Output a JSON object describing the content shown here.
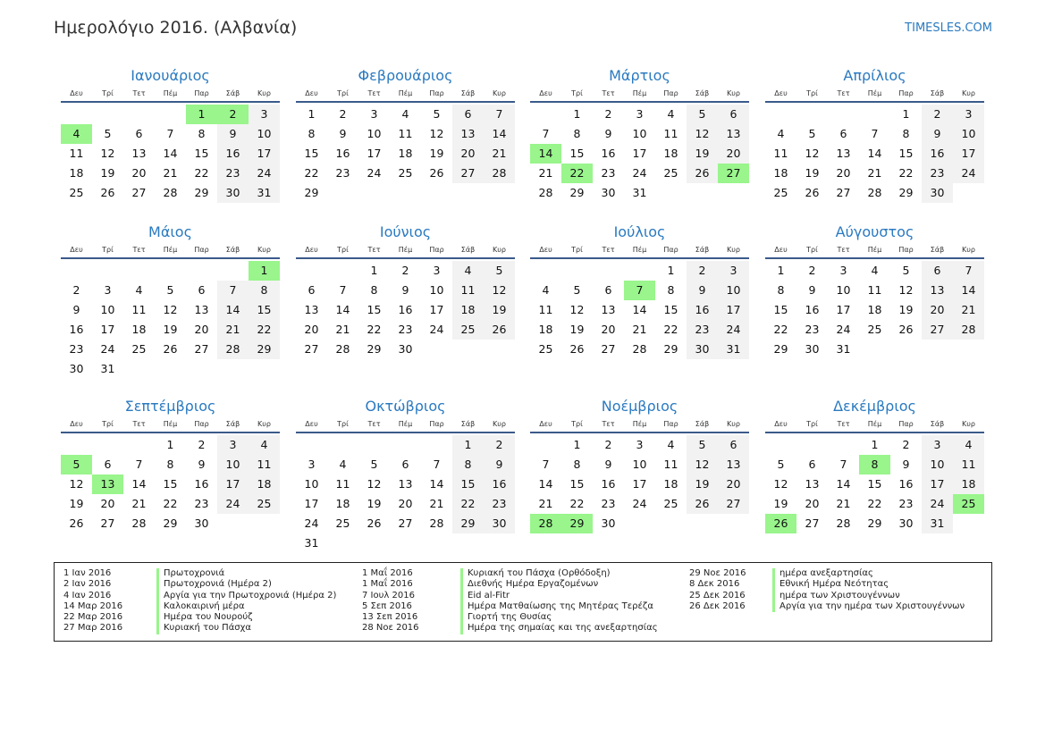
{
  "title": "Ημερολόγιο 2016. (Αλβανία)",
  "brand": "TIMESLES.COM",
  "weekdays": [
    "Δευ",
    "Τρί",
    "Τετ",
    "Πέμ",
    "Παρ",
    "Σάβ",
    "Κυρ"
  ],
  "colors": {
    "accent": "#2a7ac0",
    "holiday": "#99f58c",
    "weekend": "#f2f2f2"
  },
  "months": [
    {
      "name": "Ιανουάριος",
      "start": 4,
      "days": 31,
      "holidays": [
        1,
        2,
        4
      ]
    },
    {
      "name": "Φεβρουάριος",
      "start": 0,
      "days": 29,
      "holidays": []
    },
    {
      "name": "Μάρτιος",
      "start": 1,
      "days": 31,
      "holidays": [
        14,
        22,
        27
      ]
    },
    {
      "name": "Απρίλιος",
      "start": 4,
      "days": 30,
      "holidays": []
    },
    {
      "name": "Μάιος",
      "start": 6,
      "days": 31,
      "holidays": [
        1
      ]
    },
    {
      "name": "Ιούνιος",
      "start": 2,
      "days": 30,
      "holidays": []
    },
    {
      "name": "Ιούλιος",
      "start": 4,
      "days": 31,
      "holidays": [
        7
      ]
    },
    {
      "name": "Αύγουστος",
      "start": 0,
      "days": 31,
      "holidays": []
    },
    {
      "name": "Σεπτέμβριος",
      "start": 3,
      "days": 30,
      "holidays": [
        5,
        13
      ]
    },
    {
      "name": "Οκτώβριος",
      "start": 5,
      "days": 31,
      "holidays": []
    },
    {
      "name": "Νοέμβριος",
      "start": 1,
      "days": 30,
      "holidays": [
        28,
        29
      ]
    },
    {
      "name": "Δεκέμβριος",
      "start": 3,
      "days": 31,
      "holidays": [
        8,
        25,
        26
      ]
    }
  ],
  "legend": [
    [
      {
        "date": "1 Ιαν 2016",
        "name": "Πρωτοχρονιά"
      },
      {
        "date": "2 Ιαν 2016",
        "name": "Πρωτοχρονιά (Ημέρα 2)"
      },
      {
        "date": "4 Ιαν 2016",
        "name": "Αργία για την Πρωτοχρονιά (Ημέρα 2)"
      },
      {
        "date": "14 Μαρ 2016",
        "name": "Καλοκαιρινή μέρα"
      },
      {
        "date": "22 Μαρ 2016",
        "name": "Ημέρα του Νουρούζ"
      },
      {
        "date": "27 Μαρ 2016",
        "name": "Κυριακή του Πάσχα"
      }
    ],
    [
      {
        "date": "1 Μαΐ 2016",
        "name": "Κυριακή του Πάσχα (Ορθόδοξη)"
      },
      {
        "date": "1 Μαΐ 2016",
        "name": "Διεθνής Ημέρα Εργαζομένων"
      },
      {
        "date": "7 Ιουλ 2016",
        "name": "Eid al-Fitr"
      },
      {
        "date": "5 Σεπ 2016",
        "name": "Ημέρα Ματθαίωσης της Μητέρας Τερέζα"
      },
      {
        "date": "13 Σεπ 2016",
        "name": "Γιορτή της Θυσίας"
      },
      {
        "date": "28 Νοε 2016",
        "name": "Ημέρα της σημαίας και της ανεξαρτησίας"
      }
    ],
    [
      {
        "date": "29 Νοε 2016",
        "name": "ημέρα ανεξαρτησίας"
      },
      {
        "date": "8 Δεκ 2016",
        "name": "Εθνική Ημέρα Νεότητας"
      },
      {
        "date": "25 Δεκ 2016",
        "name": "ημέρα των Χριστουγέννων"
      },
      {
        "date": "26 Δεκ 2016",
        "name": "Αργία για την ημέρα των Χριστουγέννων"
      }
    ]
  ]
}
